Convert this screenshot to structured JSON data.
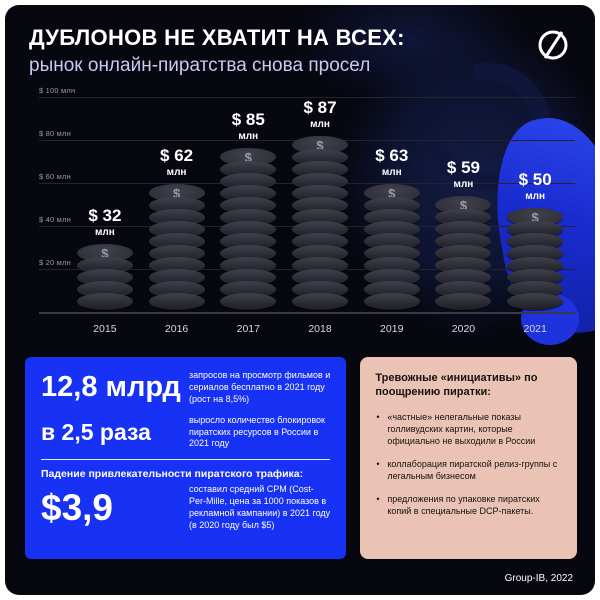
{
  "header": {
    "title": "ДУБЛОНОВ НЕ ХВАТИТ НА ВСЕХ:",
    "subtitle": "рынок онлайн-пиратства снова просел"
  },
  "icons": {
    "logo": "group-ib-circle-slash-logo"
  },
  "chart_data": {
    "type": "bar",
    "bar_style": "coin-stack",
    "title": "",
    "categories": [
      "2015",
      "2016",
      "2017",
      "2018",
      "2019",
      "2020",
      "2021"
    ],
    "values": [
      32,
      62,
      85,
      87,
      63,
      59,
      50
    ],
    "currency_prefix": "$",
    "unit": "млн",
    "y_ticks": [
      "$ 100 млн",
      "$ 80 млн",
      "$ 60 млн",
      "$ 40 млн",
      "$ 20 млн"
    ],
    "ylim": [
      0,
      100
    ],
    "grid": true,
    "legend": "none"
  },
  "stats_panel": {
    "items": [
      {
        "value": "12,8 млрд",
        "desc": "запросов на просмотр фильмов и сериалов бесплатно в 2021 году (рост на 8,5%)"
      },
      {
        "value": "в 2,5 раза",
        "desc": "выросло количество блокировок пиратских ресурсов в России в 2021 году"
      }
    ],
    "heading": "Падение привлекательности пиратского трафика:",
    "cpm": {
      "value": "$3,9",
      "desc": "составил средний CPM (Cost-Per-Mille, цена за 1000 показов в рекламной кампании) в 2021 году (в 2020 году был $5)"
    }
  },
  "initiatives_panel": {
    "title": "Тревожные «инициативы» по поощрению пиратки:",
    "bullets": [
      "«частные» нелегальные показы голливудских картин, которые официально не выходили в России",
      "коллаборация пиратской релиз-группы с легальным бизнесом",
      "предложения по упаковке пиратских копий в специальные DCP-пакеты."
    ]
  },
  "footer": {
    "credit": "Group-IB, 2022"
  },
  "colors": {
    "background": "#07070f",
    "accent_blue": "#1731f5",
    "panel_beige": "#eac3b5",
    "subtitle_lavender": "#c9c9f4",
    "coin_gray": "#33333d",
    "octopus_blue": "#1e33dd"
  }
}
